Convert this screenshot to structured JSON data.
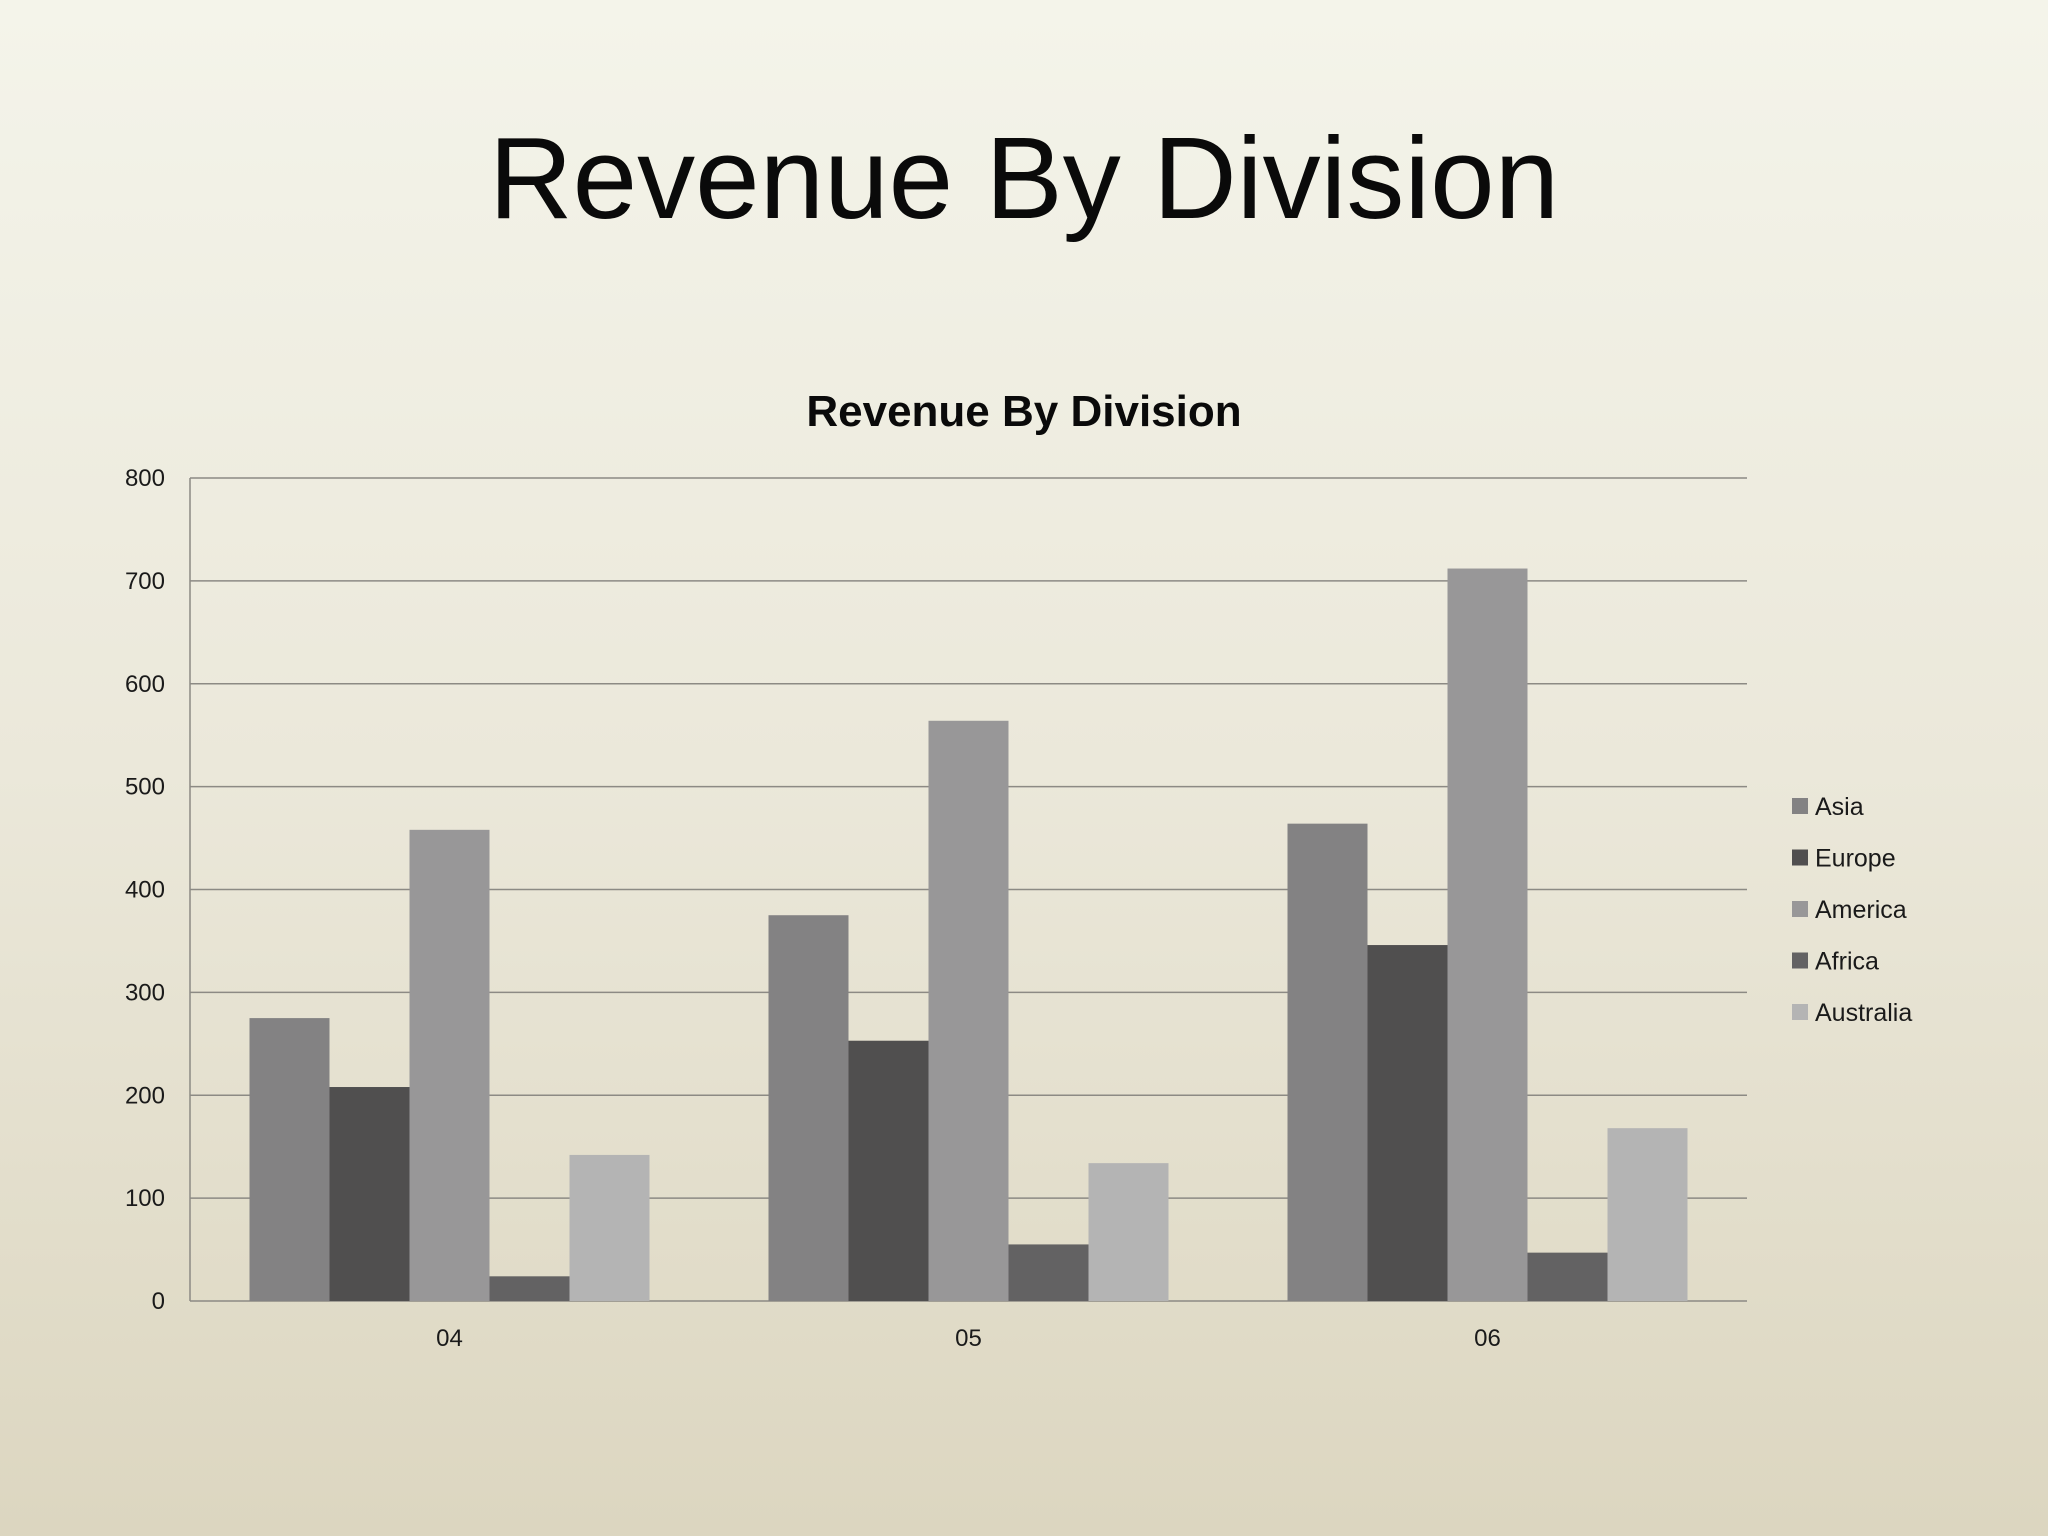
{
  "slide": {
    "title": "Revenue By Division"
  },
  "chart_data": {
    "type": "bar",
    "title": "Revenue By Division",
    "xlabel": "",
    "ylabel": "",
    "categories": [
      "04",
      "05",
      "06"
    ],
    "ylim": [
      0,
      800
    ],
    "yticks": [
      0,
      100,
      200,
      300,
      400,
      500,
      600,
      700,
      800
    ],
    "grid": true,
    "legend_position": "right",
    "series": [
      {
        "name": "Asia",
        "values": [
          275,
          375,
          464
        ],
        "color": "#838283"
      },
      {
        "name": "Europe",
        "values": [
          208,
          253,
          346
        ],
        "color": "#504f4f"
      },
      {
        "name": "America",
        "values": [
          458,
          564,
          712
        ],
        "color": "#989798"
      },
      {
        "name": "Africa",
        "values": [
          24,
          55,
          47
        ],
        "color": "#636263"
      },
      {
        "name": "Australia",
        "values": [
          142,
          134,
          168
        ],
        "color": "#b4b4b4"
      }
    ]
  }
}
